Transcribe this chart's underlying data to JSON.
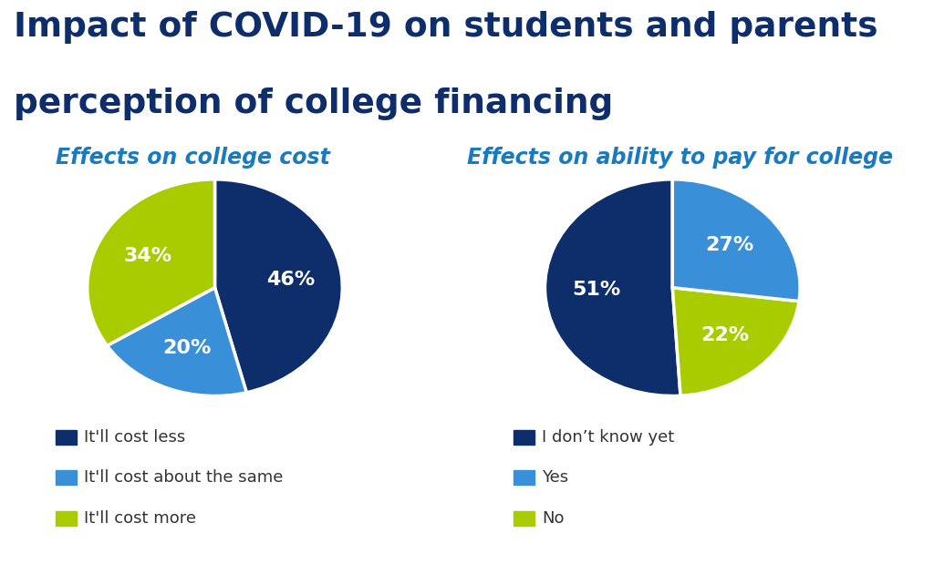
{
  "title_line1": "Impact of COVID-19 on students and parents",
  "title_line2": "perception of college financing",
  "title_color": "#0d2d6b",
  "title_fontsize": 27,
  "subtitle1": "Effects on college cost",
  "subtitle2": "Effects on ability to pay for college",
  "subtitle_color": "#1a7abf",
  "subtitle_fontsize": 17,
  "pie1_values": [
    46,
    20,
    34
  ],
  "pie1_labels": [
    "46%",
    "20%",
    "34%"
  ],
  "pie1_colors": [
    "#0d2d6b",
    "#3a8fd9",
    "#a8cc00"
  ],
  "pie1_legend": [
    "It'll cost less",
    "It'll cost about the same",
    "It'll cost more"
  ],
  "pie1_startangle": 90,
  "pie1_counterclock": false,
  "pie2_values": [
    51,
    22,
    27
  ],
  "pie2_labels": [
    "51%",
    "22%",
    "27%"
  ],
  "pie2_colors": [
    "#0d2d6b",
    "#a8cc00",
    "#3a8fd9"
  ],
  "pie2_legend": [
    "I don’t know yet",
    "No",
    "Yes"
  ],
  "pie2_startangle": 90,
  "pie2_counterclock": true,
  "legend_color": "#333333",
  "legend_fontsize": 13,
  "bg_color": "#ffffff",
  "label_fontsize": 16,
  "label_color": "#ffffff"
}
